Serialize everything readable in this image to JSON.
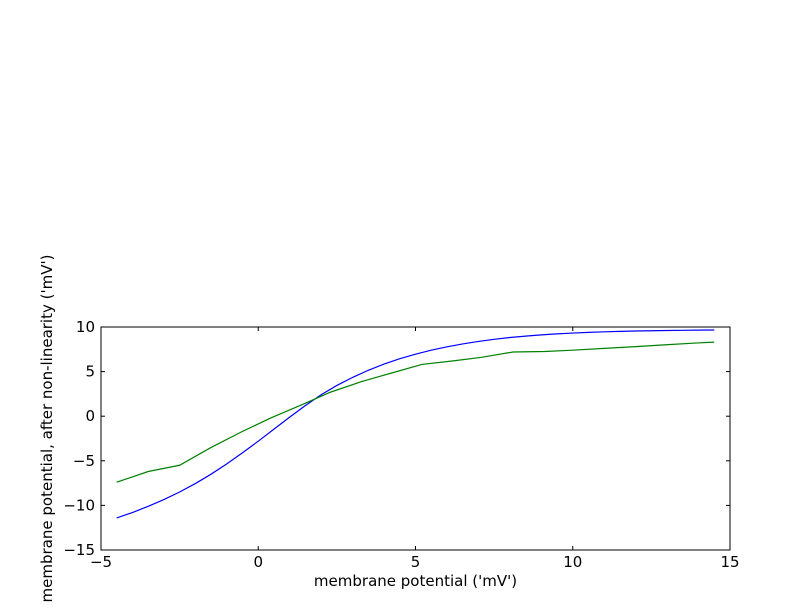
{
  "chart_data": {
    "type": "line",
    "title": "",
    "xlabel": "membrane potential ('mV')",
    "ylabel": "membrane potential, after non-linearity ('mV')",
    "xlim": [
      -5,
      15
    ],
    "ylim": [
      -15,
      10
    ],
    "xticks": [
      -5,
      0,
      5,
      10,
      15
    ],
    "yticks": [
      -15,
      -10,
      -5,
      0,
      5,
      10
    ],
    "xtick_labels": [
      "−5",
      "0",
      "5",
      "10",
      "15"
    ],
    "ytick_labels": [
      "−15",
      "−10",
      "−5",
      "0",
      "5",
      "10"
    ],
    "grid": false,
    "legend": "none",
    "series": [
      {
        "color": "#0000ff",
        "x": [
          -4.5,
          -4.0,
          -3.5,
          -3.0,
          -2.5,
          -2.0,
          -1.5,
          -1.0,
          -0.5,
          0.0,
          0.5,
          1.0,
          1.5,
          2.0,
          2.5,
          3.0,
          3.5,
          4.0,
          4.5,
          5.0,
          5.5,
          6.0,
          6.5,
          7.0,
          7.5,
          8.0,
          8.5,
          9.0,
          9.5,
          10.0,
          10.5,
          11.0,
          11.5,
          12.0,
          12.5,
          13.0,
          13.5,
          14.0,
          14.5
        ],
        "y": [
          -11.4,
          -10.8,
          -10.1,
          -9.35,
          -8.5,
          -7.55,
          -6.5,
          -5.35,
          -4.1,
          -2.8,
          -1.45,
          -0.1,
          1.2,
          2.4,
          3.45,
          4.35,
          5.15,
          5.85,
          6.45,
          6.95,
          7.4,
          7.78,
          8.1,
          8.38,
          8.62,
          8.82,
          8.98,
          9.12,
          9.23,
          9.32,
          9.4,
          9.46,
          9.51,
          9.55,
          9.58,
          9.61,
          9.63,
          9.65,
          9.66
        ]
      },
      {
        "color": "#008000",
        "x": [
          -4.5,
          -3.5,
          -2.5,
          -1.5,
          -0.5,
          0.4,
          1.4,
          2.3,
          3.3,
          4.2,
          5.2,
          6.2,
          7.1,
          8.1,
          9.1,
          10.0,
          11.0,
          12.0,
          12.9,
          13.9,
          14.5
        ],
        "y": [
          -7.4,
          -6.2,
          -5.5,
          -3.5,
          -1.7,
          -0.2,
          1.3,
          2.7,
          3.9,
          4.8,
          5.8,
          6.2,
          6.6,
          7.2,
          7.25,
          7.4,
          7.6,
          7.8,
          8.0,
          8.2,
          8.3
        ]
      }
    ]
  }
}
